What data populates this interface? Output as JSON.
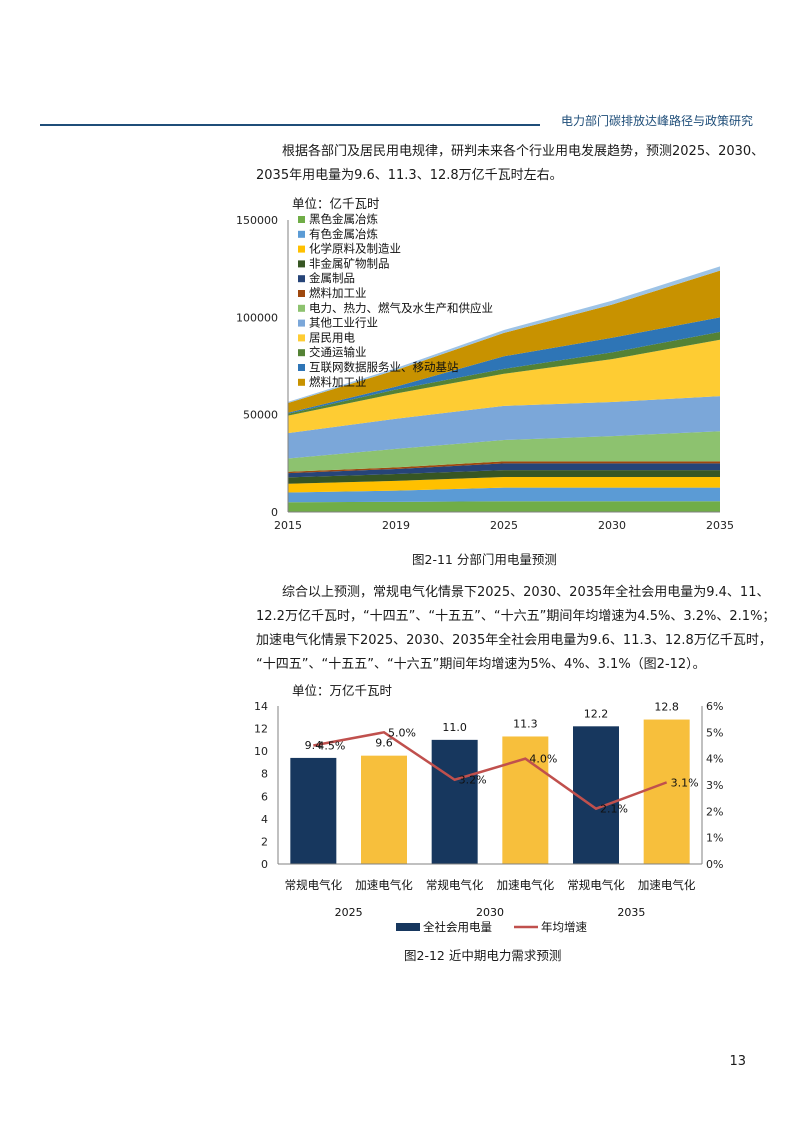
{
  "header": {
    "title": "电力部门碳排放达峰路径与政策研究"
  },
  "paragraph1": {
    "lines": [
      "根据各部门及居民用电规律，研判未来各个行业用电发展趋势，预测2025、2030、",
      "2035年用电量为9.6、11.3、12.8万亿千瓦时左右。"
    ]
  },
  "figure1": {
    "caption": "图2-11 分部门用电量预测"
  },
  "paragraph2": {
    "lines": [
      "综合以上预测，常规电气化情景下2025、2030、2035年全社会用电量为9.4、11、",
      "12.2万亿千瓦时，“十四五”、“十五五”、“十六五”期间年均增速为4.5%、3.2%、2.1%；",
      "加速电气化情景下2025、2030、2035年全社会用电量为9.6、11.3、12.8万亿千瓦时，",
      "“十四五”、“十五五”、“十六五”期间年均增速为5%、4%、3.1%（图2-12）。"
    ]
  },
  "figure2": {
    "caption": "图2-12 近中期电力需求预测"
  },
  "page_number": "13",
  "chart_data": [
    {
      "type": "area",
      "stacked": true,
      "unit_label": "单位：亿千瓦时",
      "x": [
        "2015",
        "2019",
        "2025",
        "2030",
        "2035"
      ],
      "ylim": [
        0,
        150000
      ],
      "yticks": [
        "0",
        "50000",
        "100000",
        "150000"
      ],
      "legend_position": "top-left",
      "series": [
        {
          "name": "黑色金属冶炼",
          "color": "#70ad47",
          "values": [
            5000,
            5200,
            5500,
            5500,
            5500
          ]
        },
        {
          "name": "有色金属冶炼",
          "color": "#5b9bd5",
          "values": [
            5000,
            5800,
            7000,
            7000,
            7000
          ]
        },
        {
          "name": "化学原料及制造业",
          "color": "#ffc000",
          "values": [
            4500,
            5000,
            5500,
            5500,
            5500
          ]
        },
        {
          "name": "非金属矿物制品",
          "color": "#375623",
          "values": [
            3300,
            3500,
            3500,
            3500,
            3500
          ]
        },
        {
          "name": "金属制品",
          "color": "#264478",
          "values": [
            2200,
            2600,
            3500,
            3500,
            3500
          ]
        },
        {
          "name": "燃料加工业",
          "color": "#9e480e",
          "values": [
            700,
            800,
            1000,
            1000,
            1000
          ]
        },
        {
          "name": "电力、热力、燃气及水生产和供应业",
          "color": "#8dc26f",
          "values": [
            6800,
            9500,
            11000,
            13000,
            15500
          ]
        },
        {
          "name": "其他工业行业",
          "color": "#7ba7d9",
          "values": [
            13000,
            15500,
            17500,
            17500,
            18000
          ]
        },
        {
          "name": "居民用电",
          "color": "#fecc33",
          "values": [
            9000,
            13000,
            16500,
            22000,
            29000
          ]
        },
        {
          "name": "交通运输业",
          "color": "#548235",
          "values": [
            1000,
            2000,
            2500,
            3500,
            4000
          ]
        },
        {
          "name": "互联网数据服务业、移动基站",
          "color": "#2e75b6",
          "values": [
            500,
            1500,
            6500,
            7500,
            7500
          ]
        },
        {
          "name": "燃料加工业",
          "color": "#c89200",
          "values": [
            5000,
            8500,
            12000,
            17000,
            24000
          ]
        },
        {
          "name": "",
          "color": "#9dc3e6",
          "values": [
            600,
            1000,
            1500,
            2000,
            2200
          ]
        }
      ]
    },
    {
      "type": "bar",
      "unit_label": "单位：万亿千瓦时",
      "categories": [
        "常规电气化",
        "加速电气化",
        "常规电气化",
        "加速电气化",
        "常规电气化",
        "加速电气化"
      ],
      "groups": [
        "2025",
        "2030",
        "2035"
      ],
      "ylim": [
        0,
        14
      ],
      "yticks": [
        "0",
        "2",
        "4",
        "6",
        "8",
        "10",
        "12",
        "14"
      ],
      "y2lim": [
        0,
        6
      ],
      "y2ticks": [
        "0%",
        "1%",
        "2%",
        "3%",
        "4%",
        "5%",
        "6%"
      ],
      "bar_colors": [
        "#17375e",
        "#f7bf3c",
        "#17375e",
        "#f7bf3c",
        "#17375e",
        "#f7bf3c"
      ],
      "line_color": "#c0504d",
      "series": [
        {
          "name": "全社会用电量",
          "values": [
            9.4,
            9.6,
            11.0,
            11.3,
            12.2,
            12.8
          ],
          "labels": [
            "9.4",
            "9.6",
            "11.0",
            "11.3",
            "12.2",
            "12.8"
          ]
        },
        {
          "name": "年均增速",
          "axis": "right",
          "values": [
            4.5,
            5.0,
            3.2,
            4.0,
            2.1,
            3.1
          ],
          "labels": [
            "4.5%",
            "5.0%",
            "3.2%",
            "4.0%",
            "2.1%",
            "3.1%"
          ]
        }
      ],
      "legend_position": "bottom"
    }
  ]
}
